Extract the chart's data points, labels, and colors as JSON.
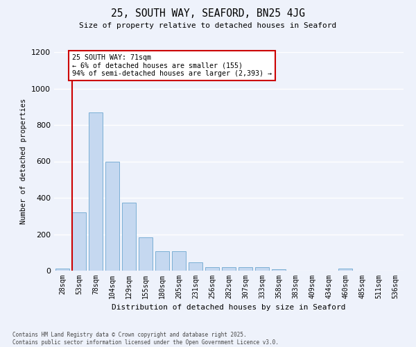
{
  "title": "25, SOUTH WAY, SEAFORD, BN25 4JG",
  "subtitle": "Size of property relative to detached houses in Seaford",
  "xlabel": "Distribution of detached houses by size in Seaford",
  "ylabel": "Number of detached properties",
  "categories": [
    "28sqm",
    "53sqm",
    "78sqm",
    "104sqm",
    "129sqm",
    "155sqm",
    "180sqm",
    "205sqm",
    "231sqm",
    "256sqm",
    "282sqm",
    "307sqm",
    "333sqm",
    "358sqm",
    "383sqm",
    "409sqm",
    "434sqm",
    "460sqm",
    "485sqm",
    "511sqm",
    "536sqm"
  ],
  "values": [
    12,
    320,
    870,
    600,
    375,
    183,
    105,
    105,
    45,
    20,
    18,
    18,
    20,
    8,
    0,
    0,
    0,
    12,
    0,
    0,
    0
  ],
  "bar_color": "#c5d8f0",
  "bar_edge_color": "#7bafd4",
  "background_color": "#eef2fb",
  "grid_color": "#ffffff",
  "vline_color": "#cc0000",
  "annotation_text": "25 SOUTH WAY: 71sqm\n← 6% of detached houses are smaller (155)\n94% of semi-detached houses are larger (2,393) →",
  "annotation_box_color": "#ffffff",
  "annotation_box_edge": "#cc0000",
  "ylim": [
    0,
    1200
  ],
  "yticks": [
    0,
    200,
    400,
    600,
    800,
    1000,
    1200
  ],
  "footer1": "Contains HM Land Registry data © Crown copyright and database right 2025.",
  "footer2": "Contains public sector information licensed under the Open Government Licence v3.0."
}
